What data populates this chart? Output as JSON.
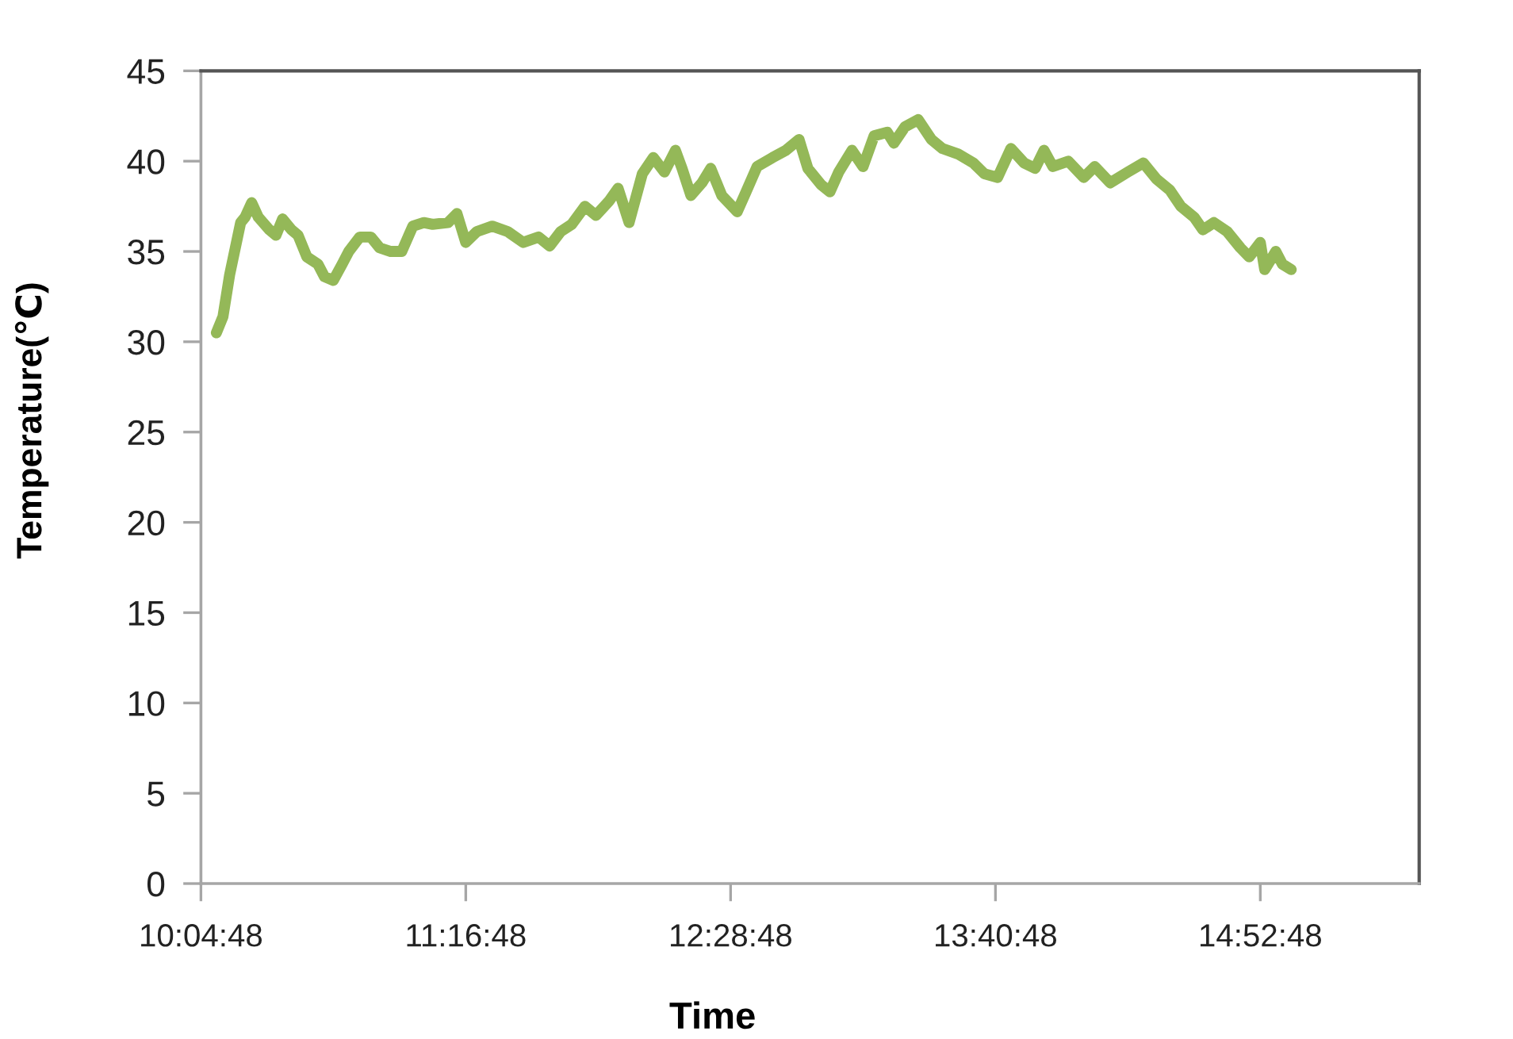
{
  "chart_data": {
    "type": "line",
    "xlabel": "Time",
    "ylabel": "Temperature(℃)",
    "xlim": [
      10.08,
      15.6
    ],
    "xticks": [
      {
        "value": 10.08,
        "label": "10:04:48"
      },
      {
        "value": 11.28,
        "label": "11:16:48"
      },
      {
        "value": 12.48,
        "label": "12:28:48"
      },
      {
        "value": 13.68,
        "label": "13:40:48"
      },
      {
        "value": 14.88,
        "label": "14:52:48"
      }
    ],
    "ylim": [
      0,
      45
    ],
    "yticks": [
      0,
      5,
      10,
      15,
      20,
      25,
      30,
      35,
      40,
      45
    ],
    "series": [
      {
        "color": "#94b858",
        "x": [
          10.15,
          10.18,
          10.21,
          10.26,
          10.28,
          10.31,
          10.34,
          10.39,
          10.42,
          10.45,
          10.49,
          10.52,
          10.56,
          10.61,
          10.64,
          10.68,
          10.72,
          10.75,
          10.8,
          10.85,
          10.89,
          10.94,
          10.99,
          11.04,
          11.09,
          11.13,
          11.2,
          11.24,
          11.28,
          11.33,
          11.4,
          11.47,
          11.54,
          11.61,
          11.66,
          11.71,
          11.76,
          11.82,
          11.87,
          11.93,
          11.97,
          12.02,
          12.08,
          12.13,
          12.18,
          12.23,
          12.26,
          12.3,
          12.35,
          12.39,
          12.44,
          12.51,
          12.55,
          12.6,
          12.67,
          12.73,
          12.79,
          12.83,
          12.89,
          12.93,
          12.97,
          13.03,
          13.08,
          13.13,
          13.19,
          13.22,
          13.27,
          13.33,
          13.39,
          13.44,
          13.51,
          13.58,
          13.63,
          13.69,
          13.75,
          13.81,
          13.86,
          13.9,
          13.94,
          14.01,
          14.08,
          14.13,
          14.2,
          14.28,
          14.35,
          14.41,
          14.47,
          14.52,
          14.58,
          14.62,
          14.67,
          14.73,
          14.79,
          14.83,
          14.88,
          14.9,
          14.95,
          14.98,
          15.02
        ],
        "values": [
          30.5,
          31.4,
          33.7,
          36.6,
          36.9,
          37.7,
          36.9,
          36.2,
          35.9,
          36.8,
          36.2,
          35.9,
          34.7,
          34.3,
          33.6,
          33.4,
          34.3,
          35.0,
          35.8,
          35.8,
          35.2,
          35.0,
          35.0,
          36.4,
          36.6,
          36.5,
          36.6,
          37.1,
          35.5,
          36.1,
          36.4,
          36.1,
          35.5,
          35.8,
          35.3,
          36.1,
          36.5,
          37.5,
          37.0,
          37.8,
          38.5,
          36.6,
          39.3,
          40.2,
          39.4,
          40.6,
          39.6,
          38.1,
          38.8,
          39.6,
          38.1,
          37.2,
          38.3,
          39.7,
          40.2,
          40.6,
          41.2,
          39.6,
          38.7,
          38.3,
          39.4,
          40.6,
          39.7,
          41.4,
          41.6,
          41.0,
          41.9,
          42.3,
          41.2,
          40.7,
          40.4,
          39.9,
          39.3,
          39.1,
          40.7,
          39.9,
          39.6,
          40.6,
          39.7,
          40.0,
          39.1,
          39.7,
          38.8,
          39.4,
          39.9,
          39.0,
          38.4,
          37.5,
          36.9,
          36.2,
          36.6,
          36.1,
          35.2,
          34.7,
          35.5,
          34.0,
          35.0,
          34.3,
          34.0
        ]
      }
    ]
  }
}
